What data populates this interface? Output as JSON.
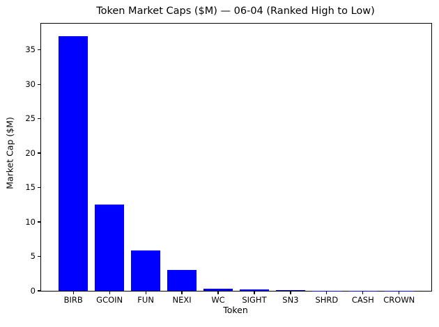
{
  "chart_data": {
    "type": "bar",
    "title": "Token Market Caps ($M) — 06-04 (Ranked High to Low)",
    "xlabel": "Token",
    "ylabel": "Market Cap ($M)",
    "categories": [
      "BIRB",
      "GCOIN",
      "FUN",
      "NEXI",
      "WC",
      "SIGHT",
      "SN3",
      "SHRD",
      "CASH",
      "CROWN"
    ],
    "values": [
      37.0,
      12.5,
      5.9,
      3.0,
      0.35,
      0.2,
      0.15,
      0.04,
      0.02,
      0.01
    ],
    "yticks": [
      0,
      5,
      10,
      15,
      20,
      25,
      30,
      35
    ],
    "ylim": [
      0,
      38.8
    ],
    "xlim": [
      -0.89,
      9.89
    ],
    "bar_width": 0.8,
    "bar_color": "#0000ff",
    "axis_color": "#000000",
    "background_color": "#ffffff",
    "grid": false,
    "legend": null
  }
}
